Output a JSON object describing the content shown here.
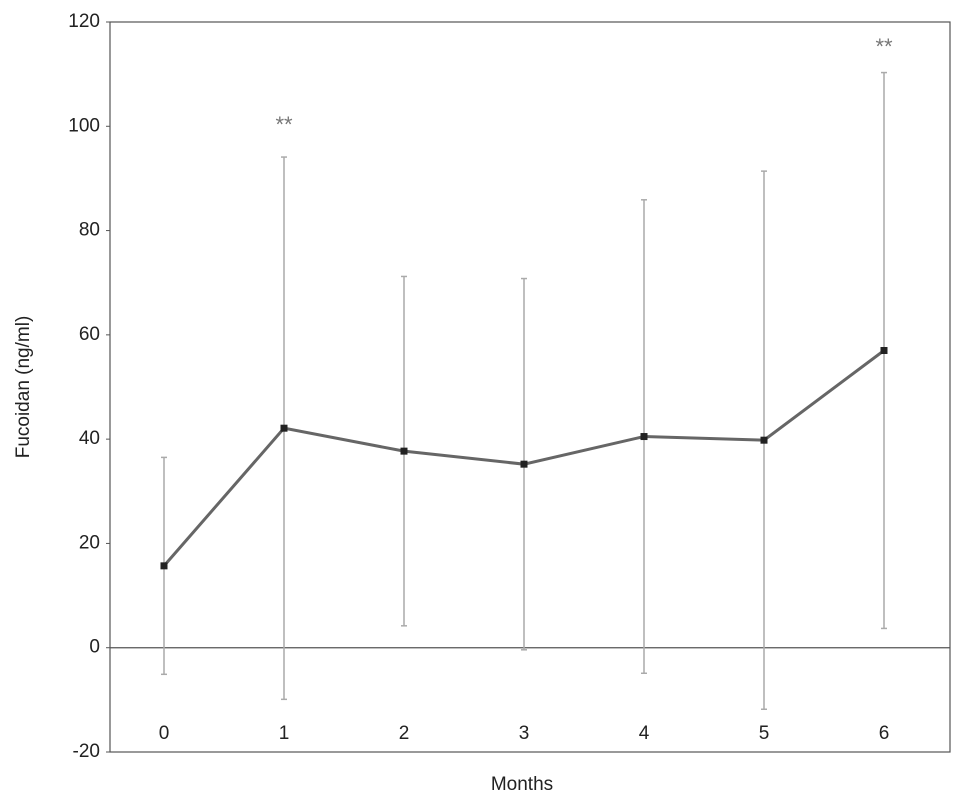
{
  "chart_data": {
    "type": "line",
    "x_label": "Months",
    "y_label": "Fucoidan (ng/ml)",
    "categories": [
      "0",
      "1",
      "2",
      "3",
      "4",
      "5",
      "6"
    ],
    "series": [
      {
        "color": "#666666",
        "values": [
          15.7,
          42.1,
          37.7,
          35.2,
          40.5,
          39.8,
          57.0
        ],
        "errors": [
          20.8,
          52.0,
          33.5,
          35.6,
          45.4,
          51.6,
          53.3
        ]
      }
    ],
    "annotations": [
      {
        "x": 1,
        "y": 100,
        "text": "**"
      },
      {
        "x": 6,
        "y": 115,
        "text": "**"
      }
    ],
    "ylim": [
      -20,
      120
    ],
    "yticks": [
      -20,
      0,
      20,
      40,
      60,
      80,
      100,
      120
    ],
    "zero_line": true
  }
}
